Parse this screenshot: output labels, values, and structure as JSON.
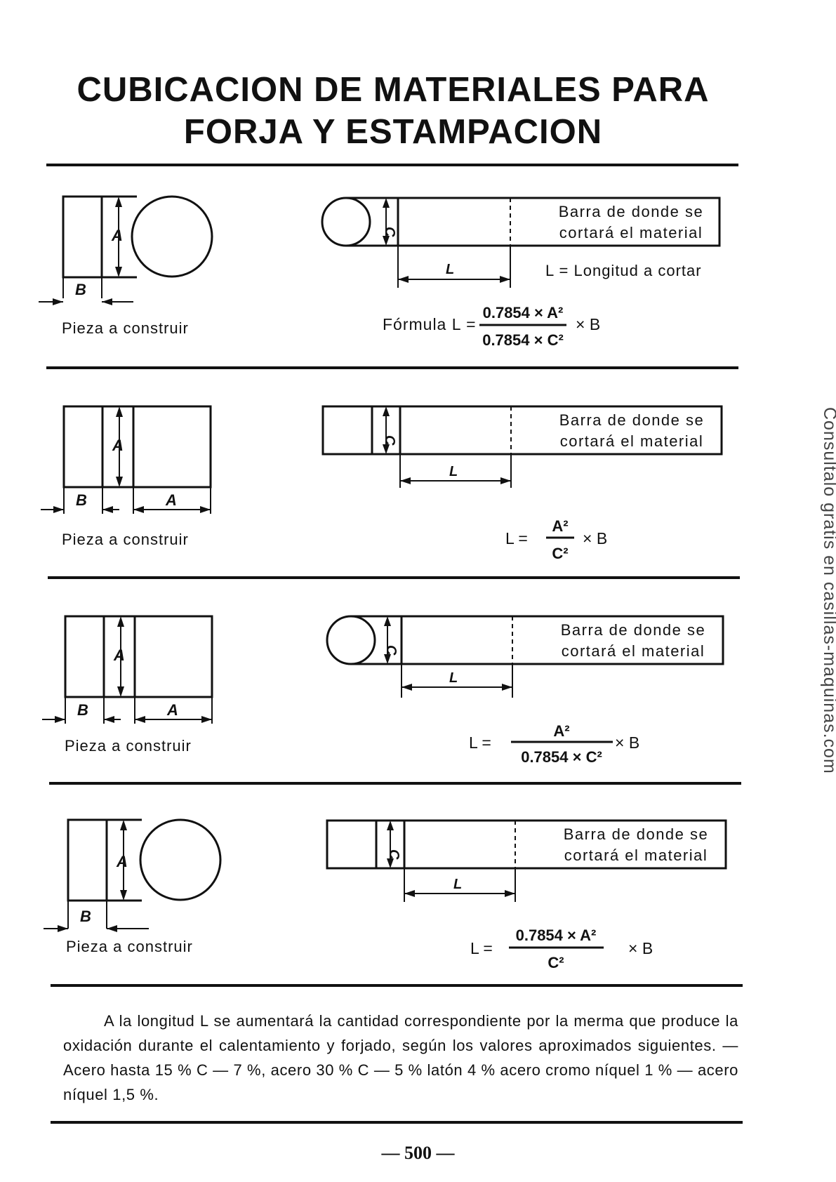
{
  "title": {
    "line1": "CUBICACION DE MATERIALES PARA",
    "line2": "FORJA Y ESTAMPACION"
  },
  "side_watermark": "Consultalo gratis en casillas-maquinas.com",
  "labels": {
    "piece": "Pieza a construir",
    "bar_line1": "Barra de donde se",
    "bar_line2": "cortará el material",
    "L_def": "L = Longitud a cortar",
    "A": "A",
    "B": "B",
    "C": "C",
    "L": "L"
  },
  "sections": [
    {
      "formula_prefix": "Fórmula L =",
      "numerator": "0.7854 × A²",
      "denominator": "0.7854 × C²",
      "suffix": "× B"
    },
    {
      "formula_prefix": "L =",
      "numerator": "A²",
      "denominator": "C²",
      "suffix": "× B"
    },
    {
      "formula_prefix": "L =",
      "numerator": "A²",
      "denominator": "0.7854 × C²",
      "suffix": "× B"
    },
    {
      "formula_prefix": "L =",
      "numerator": "0.7854 × A²",
      "denominator": "C²",
      "suffix": "× B"
    }
  ],
  "note": "A la longitud L se aumentará la cantidad correspondiente por la merma que produce la oxidación durante el calentamiento y forjado, según los valores aproximados siguientes. — Acero hasta 15 % C — 7 %, acero 30 % C — 5 % latón 4 % acero cromo níquel 1 % — acero níquel 1,5 %.",
  "page_number": "— 500 —"
}
